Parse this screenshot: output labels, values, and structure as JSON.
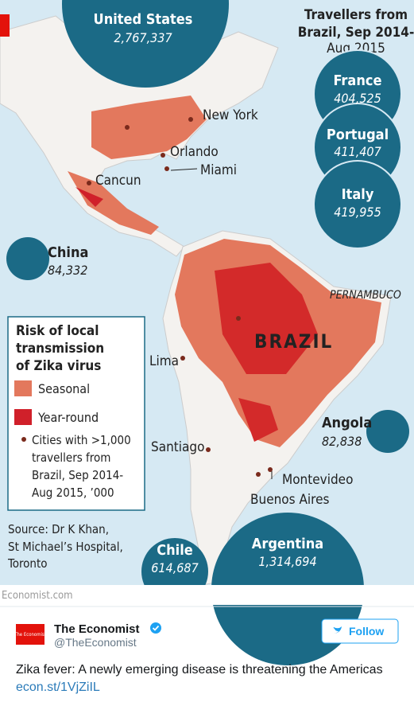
{
  "map": {
    "title_lines": [
      "Travellers from",
      "Brazil, Sep 2014-",
      "Aug 2015"
    ],
    "bubbles": [
      {
        "name": "United States",
        "value": "2,767,337"
      },
      {
        "name": "France",
        "value": "404,525"
      },
      {
        "name": "Portugal",
        "value": "411,407"
      },
      {
        "name": "Italy",
        "value": "419,955"
      },
      {
        "name": "China",
        "value": "84,332"
      },
      {
        "name": "Angola",
        "value": "82,838"
      },
      {
        "name": "Chile",
        "value": "614,687"
      },
      {
        "name": "Argentina",
        "value": "1,314,694"
      }
    ],
    "cities": [
      "New York",
      "Orlando",
      "Miami",
      "Cancun",
      "Lima",
      "Santiago",
      "Montevideo",
      "Buenos Aires"
    ],
    "regions": [
      "BRAZIL",
      "PERNAMBUCO"
    ],
    "legend": {
      "title_lines": [
        "Risk of local",
        "transmission",
        "of Zika virus"
      ],
      "items": [
        "Seasonal",
        "Year-round"
      ],
      "cities_note_lines": [
        "Cities with >1,000",
        "travellers from",
        "Brazil, Sep 2014-",
        "Aug 2015, ’000"
      ]
    },
    "source_lines": [
      "Source: Dr K Khan,",
      "St Michael’s Hospital,",
      "Toronto"
    ],
    "site": "Economist.com"
  },
  "tweet": {
    "logo": "The Economist",
    "author": "The Economist",
    "handle": "@TheEconomist",
    "follow": "Follow",
    "text": "Zika fever: A newly emerging disease is threatening the Americas",
    "link": "econ.st/1VjZiIL"
  }
}
